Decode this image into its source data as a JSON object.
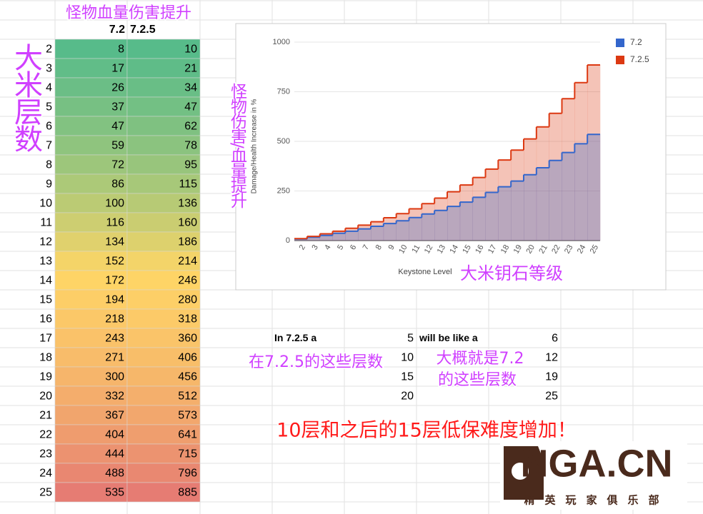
{
  "sheet_title": "怪物血量伤害提升",
  "row_label": "大米层数",
  "table": {
    "headers": [
      "7.2",
      "7.2.5"
    ],
    "rows": [
      [
        2,
        8,
        10
      ],
      [
        3,
        17,
        21
      ],
      [
        4,
        26,
        34
      ],
      [
        5,
        37,
        47
      ],
      [
        6,
        47,
        62
      ],
      [
        7,
        59,
        78
      ],
      [
        8,
        72,
        95
      ],
      [
        9,
        86,
        115
      ],
      [
        10,
        100,
        136
      ],
      [
        11,
        116,
        160
      ],
      [
        12,
        134,
        186
      ],
      [
        13,
        152,
        214
      ],
      [
        14,
        172,
        246
      ],
      [
        15,
        194,
        280
      ],
      [
        16,
        218,
        318
      ],
      [
        17,
        243,
        360
      ],
      [
        18,
        271,
        406
      ],
      [
        19,
        300,
        456
      ],
      [
        20,
        332,
        512
      ],
      [
        21,
        367,
        573
      ],
      [
        22,
        404,
        641
      ],
      [
        23,
        444,
        715
      ],
      [
        24,
        488,
        796
      ],
      [
        25,
        535,
        885
      ]
    ]
  },
  "chart_data": {
    "type": "step-area",
    "categories": [
      "2",
      "3",
      "4",
      "5",
      "6",
      "7",
      "8",
      "9",
      "10",
      "11",
      "12",
      "13",
      "14",
      "15",
      "16",
      "17",
      "18",
      "19",
      "20",
      "21",
      "22",
      "23",
      "24",
      "25"
    ],
    "series": [
      {
        "name": "7.2",
        "color": "#3366cc",
        "values": [
          8,
          17,
          26,
          37,
          47,
          59,
          72,
          86,
          100,
          116,
          134,
          152,
          172,
          194,
          218,
          243,
          271,
          300,
          332,
          367,
          404,
          444,
          488,
          535
        ]
      },
      {
        "name": "7.2.5",
        "color": "#dc3912",
        "values": [
          10,
          21,
          34,
          47,
          62,
          78,
          95,
          115,
          136,
          160,
          186,
          214,
          246,
          280,
          318,
          360,
          406,
          456,
          512,
          573,
          641,
          715,
          796,
          885
        ]
      }
    ],
    "ylim": [
      0,
      1000
    ],
    "yticks": [
      0,
      250,
      500,
      {
        "value": 750,
        "label": "750"
      },
      {
        "value": 1000,
        "label": "1000"
      }
    ],
    "ylabel": "Damage/Health Increase in %",
    "xlabel": "Keystone Level",
    "legend": "right",
    "grid": true
  },
  "chart_notes": {
    "y": "怪物伤害/血量提升",
    "x": "大米钥石等级"
  },
  "comparison": {
    "left_label": "In 7.2.5 a",
    "left_values": [
      5,
      10,
      15,
      20
    ],
    "right_label": "will be like a",
    "right_values": [
      6,
      12,
      19,
      25
    ]
  },
  "notes": {
    "left": "在7.2.5的这些层数",
    "right_1": "大概就是7.2",
    "right_2": "的这些层数",
    "warning": "10层和之后的15层低保难度增加！"
  },
  "logo": {
    "name": "NGA.CN",
    "slogan": "精英玩家俱乐部"
  }
}
